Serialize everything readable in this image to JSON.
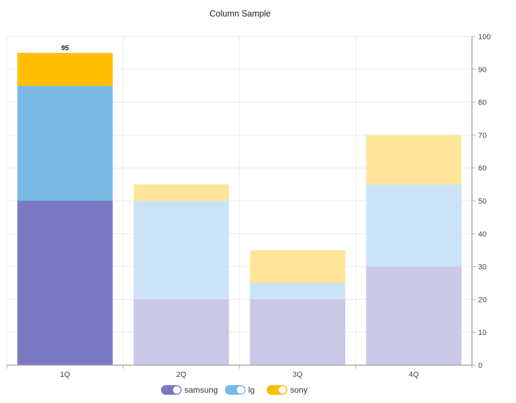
{
  "chart_data": {
    "type": "bar",
    "stacked": true,
    "title": "Column Sample",
    "categories": [
      "1Q",
      "2Q",
      "3Q",
      "4Q"
    ],
    "series": [
      {
        "name": "samsung",
        "color": "#7b78c4",
        "faded_color": "#c9c8e7",
        "values": [
          50,
          20,
          20,
          30
        ]
      },
      {
        "name": "lg",
        "color": "#7bb9e5",
        "faded_color": "#cce3f5",
        "values": [
          35,
          30,
          5,
          25
        ]
      },
      {
        "name": "sony",
        "color": "#ffbe00",
        "faded_color": "#ffe599",
        "values": [
          10,
          5,
          10,
          15
        ]
      }
    ],
    "highlighted_category": "1Q",
    "data_labels": [
      {
        "category": "1Q",
        "value": 95
      }
    ],
    "ylim": [
      0,
      100
    ],
    "yticks": [
      0,
      10,
      20,
      30,
      40,
      50,
      60,
      70,
      80,
      90,
      100
    ],
    "y_axis_position": "right",
    "grid": true,
    "legend_position": "bottom",
    "legend_style": "toggle",
    "xlabel": "",
    "ylabel": ""
  }
}
